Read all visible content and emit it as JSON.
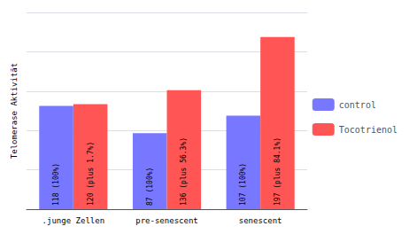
{
  "chart_data": {
    "type": "bar",
    "categories": [
      ".junge Zellen",
      "pre-senescent",
      "senescent"
    ],
    "series": [
      {
        "name": "control",
        "color": "#7777ff",
        "values": [
          118,
          87,
          107
        ],
        "value_labels": [
          "118 (100%)",
          "87 (100%)",
          "107 (100%)"
        ]
      },
      {
        "name": "Tocotrienol",
        "color": "#ff5555",
        "values": [
          120,
          136,
          197
        ],
        "value_labels": [
          "120 (plus 1.7%)",
          "136 (plus 56.3%)",
          "197 (plus 84.1%)"
        ]
      }
    ],
    "ylabel": "Telomerase Aktivität",
    "ylim": [
      0,
      225
    ],
    "yticks": [
      0,
      45,
      90,
      135,
      180,
      225
    ],
    "grid": true,
    "legend": "right",
    "data_labels": true,
    "tick_labels": "x"
  }
}
